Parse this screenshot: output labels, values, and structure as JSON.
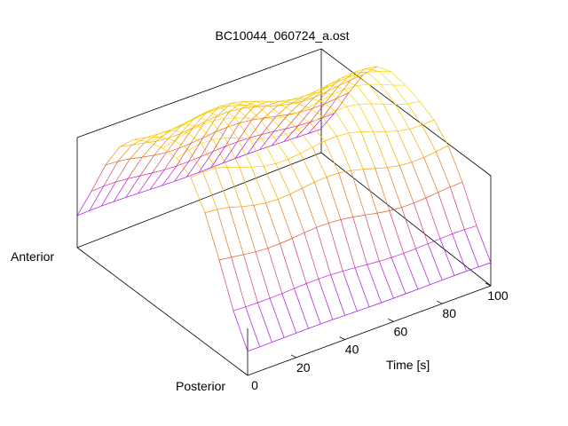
{
  "chart_data": {
    "type": "surface",
    "title": "BC10044_060724_a.ost",
    "xlabel": "Time [s]",
    "y_axis_end_labels": [
      "Anterior",
      "Posterior"
    ],
    "x_ticks": [
      "0",
      "20",
      "40",
      "60",
      "80",
      "100"
    ],
    "xlim": [
      0,
      100
    ],
    "grid": false,
    "colormap": [
      "#8a00ff",
      "#c61ad6",
      "#e2552a",
      "#f3a300",
      "#ffdc00"
    ],
    "surface": {
      "time_s": [
        0,
        5,
        10,
        15,
        20,
        25,
        30,
        35,
        40,
        45,
        50,
        55,
        60,
        65,
        70,
        75,
        80,
        85,
        90,
        95,
        100
      ],
      "profile": [
        0.1,
        0.32,
        0.55,
        0.75,
        0.9,
        0.98,
        1.0,
        0.97,
        0.88,
        0.72,
        0.5,
        0.25,
        0.05
      ],
      "note_amplitude": [
        1.0,
        1.0,
        1.0,
        0.99,
        0.98,
        0.97,
        0.96,
        0.95,
        0.94,
        0.93,
        0.92,
        0.91,
        0.9,
        0.89,
        0.88,
        0.87,
        0.86,
        0.85,
        0.84,
        0.83,
        0.82
      ]
    }
  }
}
